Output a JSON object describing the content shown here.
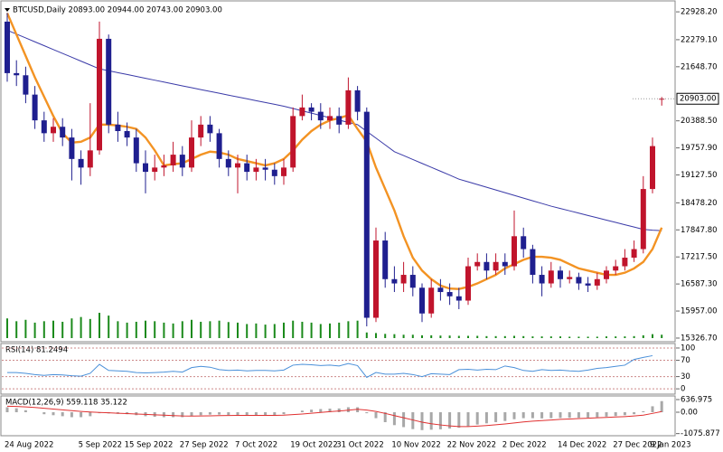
{
  "chart_data": [
    {
      "type": "candlestick",
      "title": "BTCUSD,Daily 20893.00 20944.00 20743.00 20903.00",
      "categories": [
        "24 Aug 2022",
        null,
        null,
        null,
        null,
        null,
        null,
        null,
        "5 Sep 2022",
        null,
        null,
        null,
        null,
        "15 Sep 2022",
        null,
        null,
        null,
        null,
        null,
        "27 Sep 2022",
        null,
        null,
        null,
        null,
        null,
        "7 Oct 2022",
        null,
        null,
        null,
        null,
        null,
        "19 Oct 2022",
        null,
        null,
        null,
        null,
        "31 Oct 2022",
        null,
        null,
        null,
        null,
        null,
        "10 Nov 2022",
        null,
        null,
        null,
        null,
        null,
        "22 Nov 2022",
        null,
        null,
        null,
        null,
        null,
        "2 Dec 2022",
        null,
        null,
        null,
        null,
        null,
        "14 Dec 2022",
        null,
        null,
        null,
        null,
        null,
        "27 Dec 2022",
        null,
        null,
        null,
        "9 Jan 2023",
        null
      ],
      "open": [
        22700,
        21500,
        21450,
        21000,
        20400,
        20100,
        20250,
        20000,
        19500,
        19300,
        19700,
        22300,
        20300,
        20150,
        20000,
        19400,
        19200,
        19300,
        19350,
        19600,
        19300,
        20000,
        20300,
        20100,
        19500,
        19300,
        19400,
        19200,
        19300,
        19250,
        19100,
        19300,
        20500,
        20700,
        20600,
        20400,
        20500,
        20300,
        21100,
        20600,
        15800,
        17600,
        16700,
        16600,
        16800,
        16500,
        15900,
        16500,
        16400,
        16300,
        16200,
        17000,
        17100,
        16900,
        17100,
        17000,
        17700,
        17400,
        16800,
        16600,
        16900,
        16700,
        16750,
        16600,
        16550,
        16700,
        16900,
        17000,
        17200,
        17400,
        18800,
        20893
      ],
      "high": [
        22900,
        21800,
        21650,
        21200,
        20600,
        20450,
        20450,
        20200,
        19700,
        20800,
        22700,
        22400,
        20600,
        20350,
        20200,
        19700,
        19600,
        19600,
        19900,
        19800,
        20400,
        20500,
        20500,
        20200,
        19700,
        19600,
        19600,
        19500,
        19500,
        19400,
        19500,
        20700,
        21000,
        20800,
        20800,
        20700,
        20700,
        21400,
        21200,
        20700,
        17900,
        17800,
        17000,
        17100,
        17000,
        16600,
        16700,
        16700,
        16600,
        16500,
        17200,
        17300,
        17300,
        17300,
        17300,
        18300,
        17900,
        17500,
        17000,
        17100,
        17000,
        16900,
        16850,
        16750,
        16850,
        17000,
        17150,
        17400,
        17600,
        19100,
        20000,
        20944
      ],
      "low": [
        21300,
        21200,
        20800,
        20200,
        19900,
        19900,
        19800,
        19000,
        18900,
        19100,
        19600,
        20100,
        19900,
        19800,
        19200,
        18700,
        19000,
        19100,
        19200,
        19100,
        19200,
        19800,
        19900,
        19300,
        19100,
        18700,
        19000,
        19000,
        19000,
        18900,
        18900,
        19200,
        20400,
        20400,
        20200,
        20200,
        20100,
        20200,
        20400,
        15600,
        15700,
        16500,
        16400,
        16400,
        16300,
        15700,
        15800,
        16200,
        16100,
        16000,
        16100,
        16900,
        16700,
        16800,
        16800,
        16900,
        17200,
        16600,
        16300,
        16500,
        16500,
        16600,
        16450,
        16400,
        16450,
        16600,
        16800,
        16900,
        17100,
        17300,
        18700,
        20743
      ],
      "close": [
        21500,
        21450,
        21000,
        20400,
        20100,
        20250,
        20000,
        19500,
        19300,
        19700,
        22300,
        20300,
        20150,
        20000,
        19400,
        19200,
        19300,
        19350,
        19600,
        19300,
        20000,
        20300,
        20100,
        19500,
        19300,
        19400,
        19200,
        19300,
        19250,
        19100,
        19300,
        20500,
        20700,
        20600,
        20400,
        20500,
        20300,
        21100,
        20600,
        15800,
        17600,
        16700,
        16600,
        16800,
        16500,
        15900,
        16500,
        16400,
        16300,
        16200,
        17000,
        17100,
        16900,
        17100,
        17000,
        17700,
        17400,
        16800,
        16600,
        16900,
        16700,
        16750,
        16600,
        16550,
        16700,
        16900,
        17000,
        17200,
        17400,
        18800,
        19800,
        20903
      ],
      "up_color": "#c0142c",
      "down_color": "#1f1f8f",
      "volume": [
        70,
        60,
        65,
        55,
        60,
        62,
        58,
        70,
        75,
        68,
        90,
        80,
        60,
        55,
        58,
        62,
        60,
        55,
        52,
        60,
        65,
        58,
        60,
        62,
        57,
        55,
        50,
        52,
        48,
        50,
        55,
        62,
        58,
        55,
        50,
        52,
        55,
        60,
        62,
        20,
        18,
        15,
        14,
        12,
        12,
        10,
        10,
        9,
        9,
        8,
        8,
        8,
        7,
        7,
        7,
        8,
        7,
        6,
        6,
        6,
        6,
        5,
        5,
        5,
        5,
        6,
        6,
        6,
        7,
        10,
        14,
        12
      ],
      "volume_color": "#1b8a1b",
      "series": [
        {
          "color": "#3a3aa8",
          "values": [
            22500,
            22410,
            22320,
            22230,
            22140,
            22050,
            21960,
            21870,
            21780,
            21690,
            21600,
            21556,
            21512,
            21468,
            21424,
            21380,
            21336,
            21292,
            21248,
            21204,
            21160,
            21117,
            21074,
            21031,
            20988,
            20945,
            20902,
            20859,
            20816,
            20773,
            20730,
            20676,
            20622,
            20568,
            20514,
            20460,
            20406,
            20352,
            20300,
            20143,
            19986,
            19829,
            19670,
            19579,
            19488,
            19397,
            19306,
            19215,
            19124,
            19030,
            18967,
            18904,
            18841,
            18778,
            18715,
            18652,
            18589,
            18526,
            18463,
            18400,
            18346,
            18292,
            18238,
            18184,
            18130,
            18076,
            18022,
            17968,
            17914,
            17860,
            17840,
            17830
          ]
        },
        {
          "color": "#f39323",
          "values": [
            22900,
            22400,
            21900,
            21400,
            20950,
            20500,
            20100,
            19880,
            19900,
            20000,
            20300,
            20300,
            20280,
            20250,
            20200,
            20000,
            19700,
            19350,
            19380,
            19400,
            19500,
            19600,
            19670,
            19650,
            19600,
            19500,
            19450,
            19400,
            19350,
            19400,
            19500,
            19700,
            19950,
            20150,
            20300,
            20400,
            20450,
            20520,
            20200,
            19900,
            19300,
            18800,
            18300,
            17700,
            17200,
            16900,
            16700,
            16550,
            16480,
            16470,
            16520,
            16600,
            16700,
            16800,
            16950,
            17050,
            17150,
            17220,
            17220,
            17200,
            17150,
            17050,
            16950,
            16900,
            16850,
            16800,
            16800,
            16850,
            16950,
            17100,
            17400,
            17900
          ]
        }
      ],
      "ylim": [
        15242,
        23183
      ],
      "yticks": [
        {
          "value": 22928.2,
          "label": "22928.20"
        },
        {
          "value": 22279.1,
          "label": "22279.10"
        },
        {
          "value": 21648.7,
          "label": "21648.70"
        },
        {
          "value": 20388.5,
          "label": "20388.50"
        },
        {
          "value": 19757.9,
          "label": "19757.90"
        },
        {
          "value": 19127.5,
          "label": "19127.50"
        },
        {
          "value": 18478.2,
          "label": "18478.20"
        },
        {
          "value": 17847.8,
          "label": "17847.80"
        },
        {
          "value": 17217.5,
          "label": "17217.50"
        },
        {
          "value": 16587.3,
          "label": "16587.30"
        },
        {
          "value": 15957,
          "label": "15957.00"
        },
        {
          "value": 15326.7,
          "label": "15326.70"
        }
      ],
      "last_price": {
        "value": 20903,
        "label": "20903.00"
      }
    },
    {
      "type": "line",
      "title": "RSI(14) 81.2494",
      "color": "#4a90d9",
      "values": [
        40,
        40,
        38,
        35,
        33,
        35,
        34,
        32,
        31,
        38,
        60,
        45,
        44,
        43,
        40,
        39,
        40,
        41,
        43,
        41,
        52,
        55,
        53,
        47,
        45,
        46,
        44,
        45,
        45,
        44,
        46,
        58,
        60,
        59,
        57,
        58,
        56,
        62,
        57,
        28,
        40,
        36,
        36,
        38,
        35,
        30,
        37,
        36,
        35,
        47,
        48,
        46,
        48,
        47,
        56,
        52,
        45,
        43,
        47,
        45,
        46,
        44,
        43,
        46,
        50,
        52,
        55,
        58,
        72,
        77,
        81.2494
      ],
      "ylim": [
        -13,
        111
      ],
      "yticks": [
        0,
        30,
        70,
        100
      ]
    },
    {
      "type": "bar",
      "title": "MACD(12,26,9) 559.118 35.122",
      "color": "#a8a8a8",
      "values": [
        250,
        200,
        100,
        0,
        -100,
        -150,
        -200,
        -250,
        -250,
        -200,
        -50,
        -60,
        -80,
        -100,
        -150,
        -200,
        -230,
        -250,
        -250,
        -250,
        -200,
        -150,
        -120,
        -120,
        -140,
        -150,
        -160,
        -170,
        -170,
        -170,
        -100,
        0,
        80,
        130,
        160,
        180,
        190,
        250,
        250,
        -50,
        -300,
        -500,
        -650,
        -750,
        -850,
        -900,
        -880,
        -860,
        -820,
        -780,
        -700,
        -620,
        -560,
        -500,
        -440,
        -350,
        -300,
        -300,
        -310,
        -300,
        -290,
        -280,
        -280,
        -270,
        -250,
        -220,
        -190,
        -150,
        -100,
        50,
        300,
        559.118
      ],
      "signal": {
        "color": "#e03030",
        "values": [
          300,
          290,
          270,
          240,
          200,
          160,
          120,
          80,
          40,
          10,
          -10,
          -30,
          -50,
          -70,
          -90,
          -110,
          -130,
          -150,
          -170,
          -190,
          -195,
          -190,
          -180,
          -170,
          -165,
          -160,
          -160,
          -160,
          -160,
          -160,
          -150,
          -120,
          -90,
          -50,
          -10,
          30,
          60,
          100,
          150,
          110,
          40,
          -60,
          -170,
          -280,
          -390,
          -500,
          -580,
          -640,
          -690,
          -720,
          -720,
          -700,
          -670,
          -630,
          -590,
          -540,
          -490,
          -450,
          -420,
          -390,
          -360,
          -340,
          -320,
          -300,
          -280,
          -260,
          -240,
          -220,
          -190,
          -150,
          -60,
          35.122
        ]
      },
      "ylim": [
        -1183,
        819
      ],
      "yticks": [
        636.975,
        {
          "value": 0,
          "label": "0.00"
        },
        -1075.877
      ]
    }
  ]
}
